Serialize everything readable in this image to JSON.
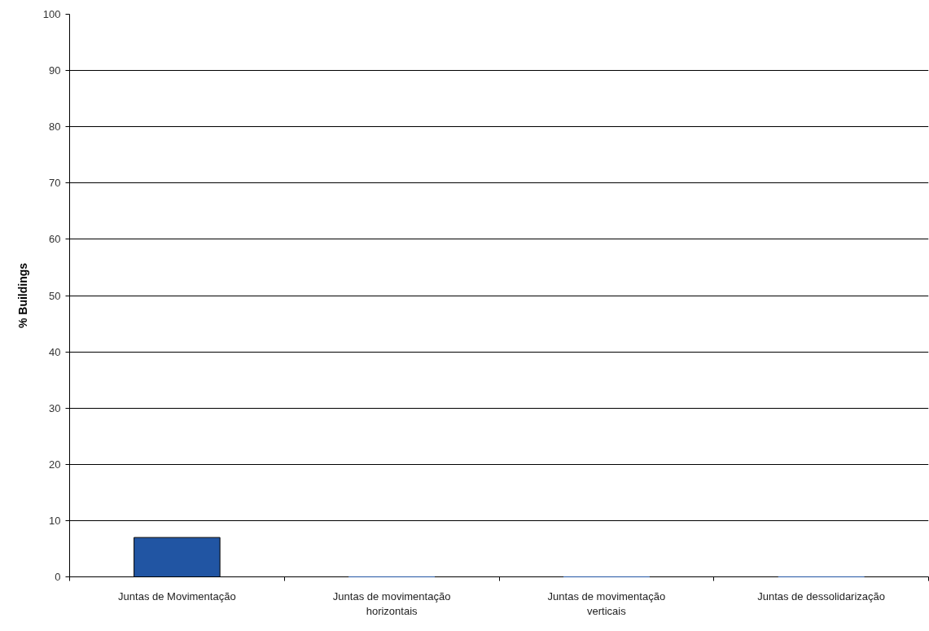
{
  "chart_data": {
    "type": "bar",
    "ylabel": "% Buildings",
    "categories": [
      "Juntas de Movimentação",
      "Juntas de movimentação horizontais",
      "Juntas de movimentação verticais",
      "Juntas de dessolidarização"
    ],
    "values": [
      7,
      0,
      0,
      0
    ],
    "color": "#2155a3",
    "ylim": [
      0,
      100
    ],
    "yticks": [
      0,
      10,
      20,
      30,
      40,
      50,
      60,
      70,
      80,
      90,
      100
    ],
    "grid": "y"
  }
}
